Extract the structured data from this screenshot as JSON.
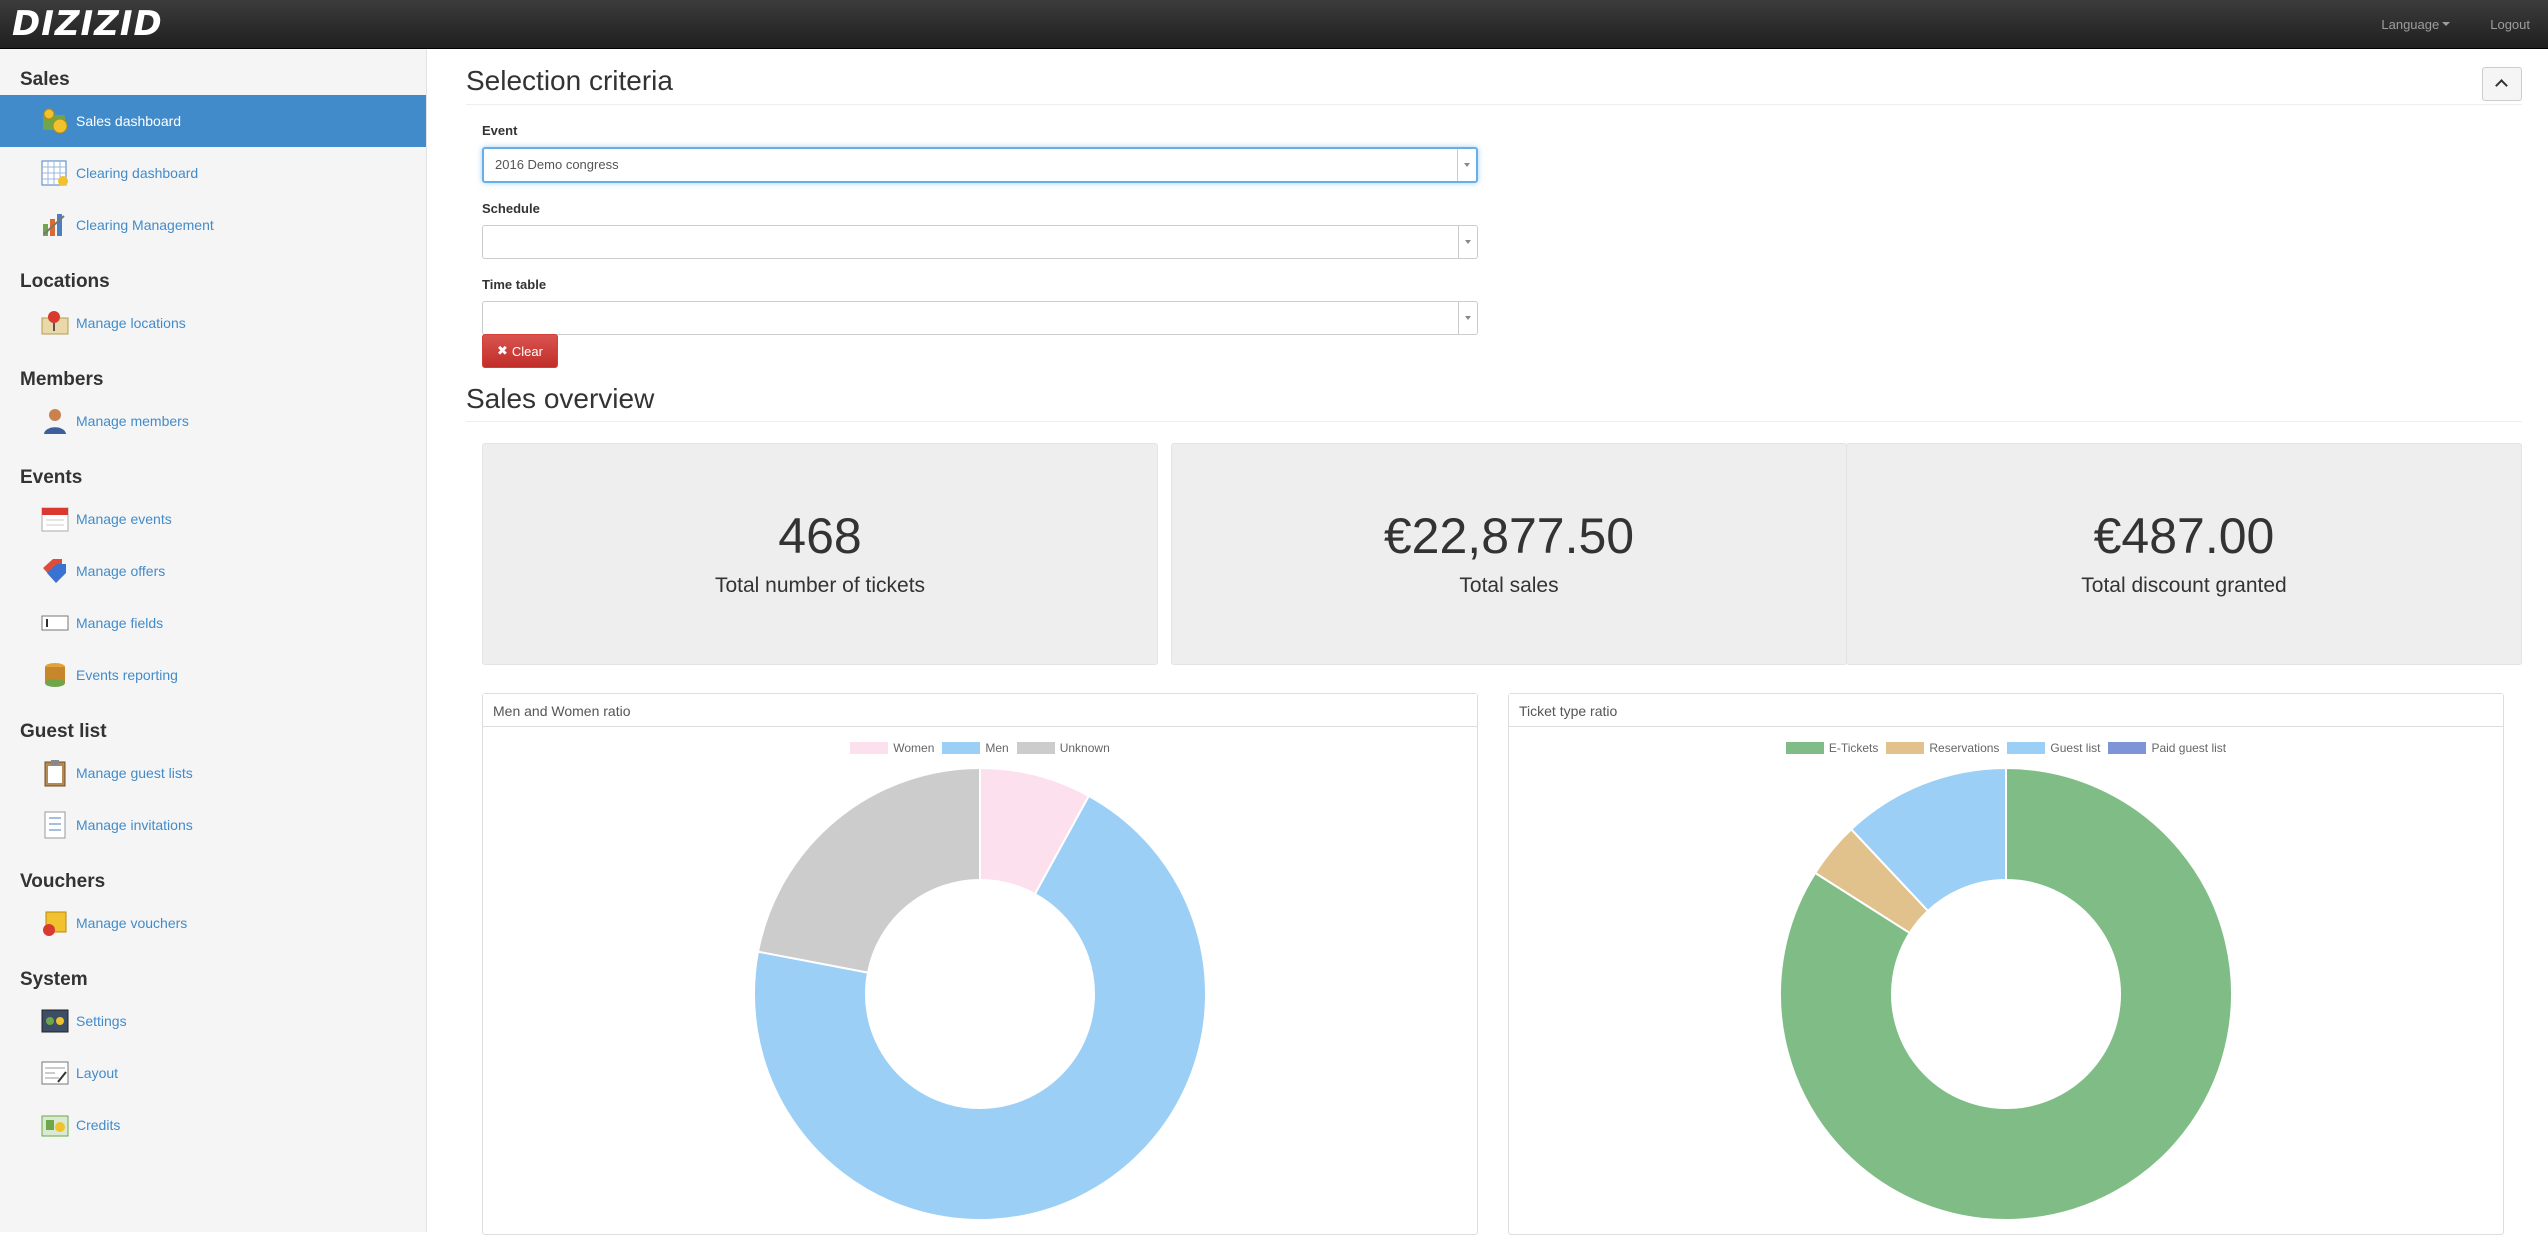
{
  "app": {
    "brand": "DIZIZID",
    "language_label": "Language",
    "logout_label": "Logout"
  },
  "sidebar": [
    {
      "header": "Sales",
      "items": [
        {
          "label": "Sales dashboard",
          "icon": "coins-icon",
          "active": true
        },
        {
          "label": "Clearing dashboard",
          "icon": "calendar-grid-icon",
          "active": false
        },
        {
          "label": "Clearing Management",
          "icon": "tools-chart-icon",
          "active": false
        }
      ]
    },
    {
      "header": "Locations",
      "items": [
        {
          "label": "Manage locations",
          "icon": "map-pin-icon",
          "active": false
        }
      ]
    },
    {
      "header": "Members",
      "items": [
        {
          "label": "Manage members",
          "icon": "user-icon",
          "active": false
        }
      ]
    },
    {
      "header": "Events",
      "items": [
        {
          "label": "Manage events",
          "icon": "calendar-icon",
          "active": false
        },
        {
          "label": "Manage offers",
          "icon": "tags-icon",
          "active": false
        },
        {
          "label": "Manage fields",
          "icon": "input-field-icon",
          "active": false
        },
        {
          "label": "Events reporting",
          "icon": "database-icon",
          "active": false
        }
      ]
    },
    {
      "header": "Guest list",
      "items": [
        {
          "label": "Manage guest lists",
          "icon": "clipboard-icon",
          "active": false
        },
        {
          "label": "Manage invitations",
          "icon": "checklist-icon",
          "active": false
        }
      ]
    },
    {
      "header": "Vouchers",
      "items": [
        {
          "label": "Manage vouchers",
          "icon": "voucher-icon",
          "active": false
        }
      ]
    },
    {
      "header": "System",
      "items": [
        {
          "label": "Settings",
          "icon": "settings-panel-icon",
          "active": false
        },
        {
          "label": "Layout",
          "icon": "layout-icon",
          "active": false
        },
        {
          "label": "Credits",
          "icon": "credits-icon",
          "active": false
        }
      ]
    }
  ],
  "selection": {
    "title": "Selection criteria",
    "event_label": "Event",
    "event_value": "2016 Demo congress",
    "schedule_label": "Schedule",
    "schedule_value": "",
    "timetable_label": "Time table",
    "timetable_value": "",
    "clear_label": "Clear"
  },
  "overview": {
    "title": "Sales overview",
    "stats": [
      {
        "value": "468",
        "caption": "Total number of tickets"
      },
      {
        "value": "€22,877.50",
        "caption": "Total sales"
      },
      {
        "value": "€487.00",
        "caption": "Total discount granted"
      }
    ]
  },
  "chart_data": [
    {
      "type": "pie",
      "title": "Men and Women ratio",
      "categories": [
        "Women",
        "Men",
        "Unknown"
      ],
      "values": [
        8,
        70,
        22
      ],
      "colors": [
        "#fde0ee",
        "#9ccff5",
        "#cccccc"
      ]
    },
    {
      "type": "pie",
      "title": "Ticket type ratio",
      "categories": [
        "E-Tickets",
        "Reservations",
        "Guest list",
        "Paid guest list"
      ],
      "values": [
        84,
        4,
        12,
        0
      ],
      "colors": [
        "#80bd86",
        "#e2c28c",
        "#9ccff5",
        "#7d95d6"
      ]
    }
  ]
}
